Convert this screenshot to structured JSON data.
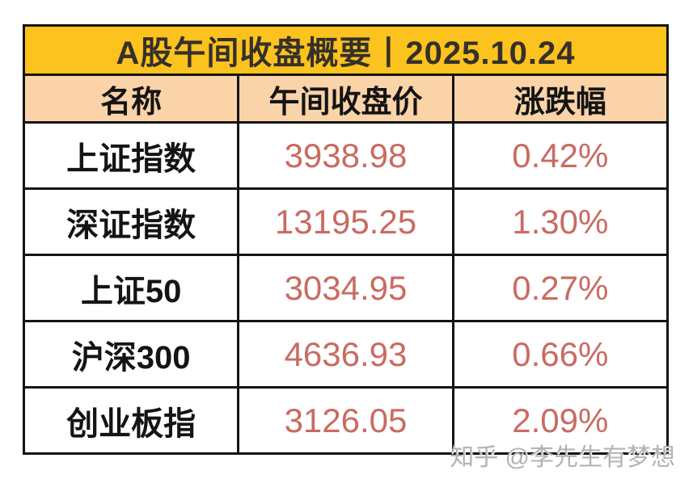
{
  "page": {
    "watermark": "知乎 @李先生有梦想"
  },
  "colors": {
    "title_bg": "#FCC21E",
    "header_bg": "#FBD3A8",
    "value_text": "#C96B62",
    "border": "#141414",
    "watermark_text": "#B3B3B3"
  },
  "chart_data": {
    "type": "table",
    "title": "A股午间收盘概要丨2025.10.24",
    "columns": [
      "名称",
      "午间收盘价",
      "涨跌幅"
    ],
    "rows": [
      [
        "上证指数",
        "3938.98",
        "0.42%"
      ],
      [
        "深证指数",
        "13195.25",
        "1.30%"
      ],
      [
        "上证50",
        "3034.95",
        "0.27%"
      ],
      [
        "沪深300",
        "4636.93",
        "0.66%"
      ],
      [
        "创业板指",
        "3126.05",
        "2.09%"
      ]
    ],
    "layout_hints": {
      "title_row_bg": "yellow",
      "header_row_bg": "peach",
      "data_row_bg": "white",
      "value_columns_color": "salmon-red",
      "grid": "heavy black borders"
    }
  }
}
